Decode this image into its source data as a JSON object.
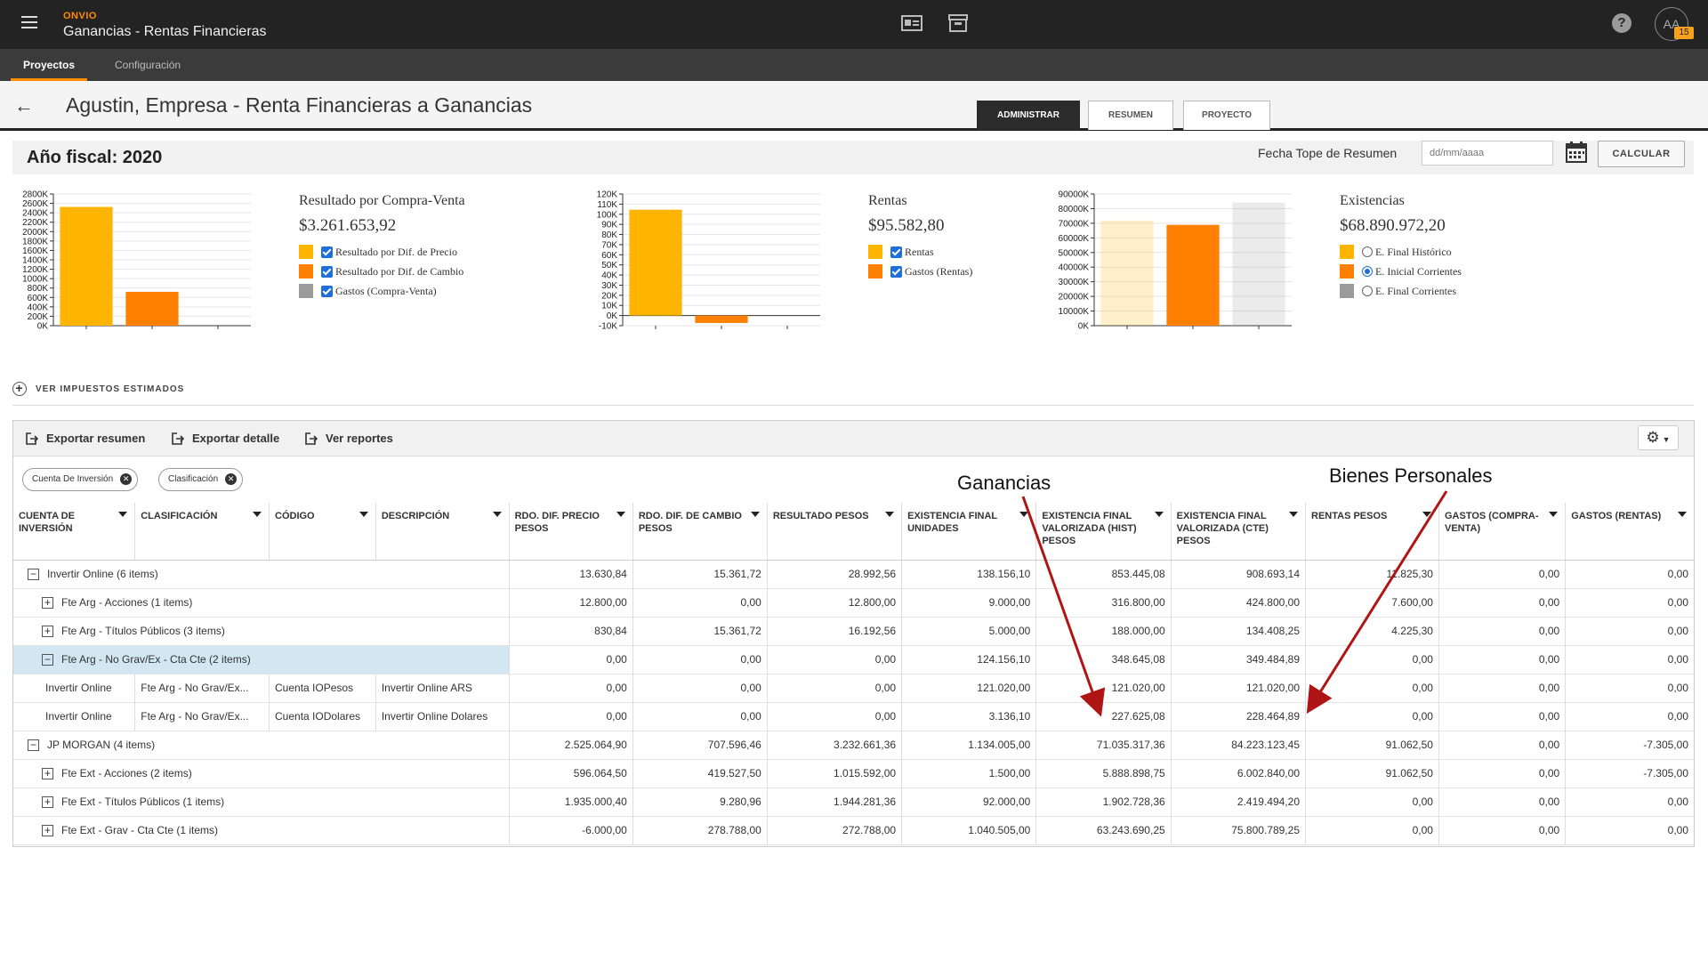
{
  "brand": "ONVIO",
  "app_title": "Ganancias - Rentas Financieras",
  "nav_tabs": [
    {
      "label": "Proyectos",
      "active": true
    },
    {
      "label": "Configuración",
      "active": false
    }
  ],
  "badge_count": "15",
  "avatar_initials": "AA",
  "help_glyph": "?",
  "page_title": "Agustin, Empresa - Renta Financieras a Ganancias",
  "view_tabs": [
    {
      "label": "ADMINISTRAR",
      "active": true
    },
    {
      "label": "RESUMEN",
      "active": false
    },
    {
      "label": "PROYECTO",
      "active": false
    }
  ],
  "fiscal_year": "Año fiscal: 2020",
  "fecha_label": "Fecha Tope de Resumen",
  "fecha_placeholder": "dd/mm/aaaa",
  "calcular_label": "CALCULAR",
  "panels": [
    {
      "title": "Resultado por Compra-Venta",
      "value": "$3.261.653,92",
      "legend": [
        {
          "label": "Resultado por Dif. de Precio",
          "color": "#ffb400",
          "control": "checkbox",
          "checked": true
        },
        {
          "label": "Resultado por Dif. de Cambio",
          "color": "#ff7f00",
          "control": "checkbox",
          "checked": true
        },
        {
          "label": "Gastos (Compra-Venta)",
          "color": "#9b9b9b",
          "control": "checkbox",
          "checked": true
        }
      ]
    },
    {
      "title": "Rentas",
      "value": "$95.582,80",
      "legend": [
        {
          "label": "Rentas",
          "color": "#ffb400",
          "control": "checkbox",
          "checked": true
        },
        {
          "label": "Gastos (Rentas)",
          "color": "#ff7f00",
          "control": "checkbox",
          "checked": true
        }
      ]
    },
    {
      "title": "Existencias",
      "value": "$68.890.972,20",
      "legend": [
        {
          "label": "E. Final Histórico",
          "color": "#ffb400",
          "control": "radio",
          "checked": false
        },
        {
          "label": "E. Inicial Corrientes",
          "color": "#ff7f00",
          "control": "radio",
          "checked": true
        },
        {
          "label": "E. Final Corrientes",
          "color": "#9b9b9b",
          "control": "radio",
          "checked": false
        }
      ]
    }
  ],
  "chart_data": [
    {
      "type": "bar",
      "ylim": [
        0,
        2800000
      ],
      "yticks": [
        "0K",
        "200K",
        "400K",
        "600K",
        "800K",
        "1000K",
        "1200K",
        "1400K",
        "1600K",
        "1800K",
        "2000K",
        "2200K",
        "2400K",
        "2600K",
        "2800K"
      ],
      "series": [
        {
          "name": "Resultado por Dif. de Precio",
          "values": [
            2525000
          ],
          "color": "#ffb400",
          "opacity": 1
        },
        {
          "name": "Resultado por Dif. de Cambio",
          "values": [
            720000
          ],
          "color": "#ff7f00",
          "opacity": 1
        }
      ]
    },
    {
      "type": "bar",
      "ylim": [
        -10000,
        120000
      ],
      "yticks": [
        "-10K",
        "0K",
        "10K",
        "20K",
        "30K",
        "40K",
        "50K",
        "60K",
        "70K",
        "80K",
        "90K",
        "100K",
        "110K",
        "120K"
      ],
      "series": [
        {
          "name": "Rentas",
          "values": [
            104500
          ],
          "color": "#ffb400",
          "opacity": 1
        },
        {
          "name": "Gastos (Rentas)",
          "values": [
            -7300
          ],
          "color": "#ff7f00",
          "opacity": 1
        }
      ]
    },
    {
      "type": "bar",
      "ylim": [
        0,
        90000000
      ],
      "yticks": [
        "0K",
        "10000K",
        "20000K",
        "30000K",
        "40000K",
        "50000K",
        "60000K",
        "70000K",
        "80000K",
        "90000K"
      ],
      "series": [
        {
          "name": "E. Final Histórico",
          "values": [
            71900000
          ],
          "color": "#ffb400",
          "opacity": 0.2
        },
        {
          "name": "E. Inicial Corrientes",
          "values": [
            68900000
          ],
          "color": "#ff7f00",
          "opacity": 1
        },
        {
          "name": "E. Final Corrientes",
          "values": [
            84200000
          ],
          "color": "#9b9b9b",
          "opacity": 0.2
        }
      ]
    }
  ],
  "impuestos_label": "VER IMPUESTOS ESTIMADOS",
  "toolbar": {
    "export_resumen": "Exportar resumen",
    "export_detalle": "Exportar detalle",
    "ver_reportes": "Ver reportes"
  },
  "chips": [
    "Cuenta De Inversión",
    "Clasificación"
  ],
  "columns": [
    "CUENTA DE INVERSIÓN",
    "CLASIFICACIÓN",
    "CÓDIGO",
    "DESCRIPCIÓN",
    "RDO. DIF. PRECIO PESOS",
    "RDO. DIF. DE CAMBIO PESOS",
    "RESULTADO PESOS",
    "EXISTENCIA FINAL UNIDADES",
    "EXISTENCIA FINAL VALORIZADA (HIST) PESOS",
    "EXISTENCIA FINAL VALORIZADA (CTE) PESOS",
    "RENTAS PESOS",
    "GASTOS (COMPRA-VENTA)",
    "GASTOS (RENTAS)"
  ],
  "rows": [
    {
      "kind": "group",
      "level": 0,
      "label": "Invertir Online (6 items)",
      "values": [
        "13.630,84",
        "15.361,72",
        "28.992,56",
        "138.156,10",
        "853.445,08",
        "908.693,14",
        "11.825,30",
        "0,00",
        "0,00"
      ]
    },
    {
      "kind": "group",
      "level": 1,
      "label": "Fte Arg - Acciones (1 items)",
      "values": [
        "12.800,00",
        "0,00",
        "12.800,00",
        "9.000,00",
        "316.800,00",
        "424.800,00",
        "7.600,00",
        "0,00",
        "0,00"
      ]
    },
    {
      "kind": "group",
      "level": 1,
      "label": "Fte Arg - Títulos Públicos (3 items)",
      "values": [
        "830,84",
        "15.361,72",
        "16.192,56",
        "5.000,00",
        "188.000,00",
        "134.408,25",
        "4.225,30",
        "0,00",
        "0,00"
      ]
    },
    {
      "kind": "group",
      "level": 1,
      "label": "Fte Arg - No Grav/Ex - Cta Cte (2 items)",
      "selected": true,
      "values": [
        "0,00",
        "0,00",
        "0,00",
        "124.156,10",
        "348.645,08",
        "349.484,89",
        "0,00",
        "0,00",
        "0,00"
      ]
    },
    {
      "kind": "detail",
      "cells": [
        "Invertir Online",
        "Fte Arg - No Grav/Ex...",
        "Cuenta IOPesos",
        "Invertir Online ARS"
      ],
      "values": [
        "0,00",
        "0,00",
        "0,00",
        "121.020,00",
        "121.020,00",
        "121.020,00",
        "0,00",
        "0,00",
        "0,00"
      ]
    },
    {
      "kind": "detail",
      "cells": [
        "Invertir Online",
        "Fte Arg - No Grav/Ex...",
        "Cuenta IODolares",
        "Invertir Online Dolares"
      ],
      "values": [
        "0,00",
        "0,00",
        "0,00",
        "3.136,10",
        "227.625,08",
        "228.464,89",
        "0,00",
        "0,00",
        "0,00"
      ]
    },
    {
      "kind": "group",
      "level": 0,
      "label": "JP MORGAN (4 items)",
      "values": [
        "2.525.064,90",
        "707.596,46",
        "3.232.661,36",
        "1.134.005,00",
        "71.035.317,36",
        "84.223.123,45",
        "91.062,50",
        "0,00",
        "-7.305,00"
      ]
    },
    {
      "kind": "group",
      "level": 1,
      "label": "Fte Ext - Acciones (2 items)",
      "values": [
        "596.064,50",
        "419.527,50",
        "1.015.592,00",
        "1.500,00",
        "5.888.898,75",
        "6.002.840,00",
        "91.062,50",
        "0,00",
        "-7.305,00"
      ]
    },
    {
      "kind": "group",
      "level": 1,
      "label": "Fte Ext - Títulos Públicos (1 items)",
      "values": [
        "1.935.000,40",
        "9.280,96",
        "1.944.281,36",
        "92.000,00",
        "1.902.728,36",
        "2.419.494,20",
        "0,00",
        "0,00",
        "0,00"
      ]
    },
    {
      "kind": "group",
      "level": 1,
      "label": "Fte Ext - Grav - Cta Cte (1 items)",
      "values": [
        "-6.000,00",
        "278.788,00",
        "272.788,00",
        "1.040.505,00",
        "63.243.690,25",
        "75.800.789,25",
        "0,00",
        "0,00",
        "0,00"
      ]
    }
  ],
  "annotations": [
    "Ganancias",
    "Bienes Personales"
  ]
}
